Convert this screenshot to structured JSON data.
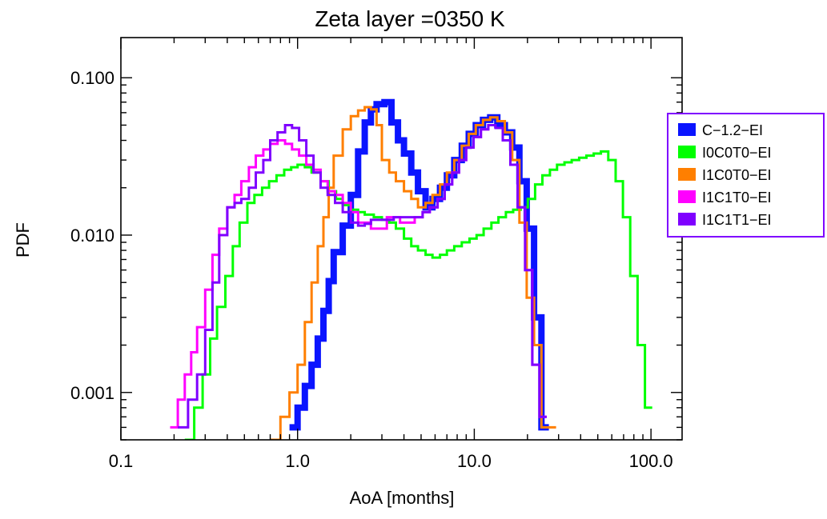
{
  "chart_data": {
    "type": "line",
    "title": "Zeta layer =0350 K",
    "xlabel": "AoA [months]",
    "ylabel": "PDF",
    "xscale": "log",
    "yscale": "log",
    "xlim": [
      0.1,
      150
    ],
    "ylim": [
      0.0005,
      0.18
    ],
    "x_ticks": [
      0.1,
      1.0,
      10.0,
      100.0
    ],
    "x_tick_labels": [
      "0.1",
      "1.0",
      "10.0",
      "100.0"
    ],
    "y_ticks": [
      0.001,
      0.01,
      0.1
    ],
    "y_tick_labels": [
      "0.001",
      "0.010",
      "0.100"
    ],
    "step_style": "histogram",
    "grid": false,
    "legend_position": "right, outside",
    "series": [
      {
        "name": "C−1.2−EI",
        "color": "#0a14ff",
        "bold": true,
        "x": [
          0.9,
          1.0,
          1.1,
          1.2,
          1.3,
          1.4,
          1.5,
          1.6,
          1.8,
          2.0,
          2.2,
          2.4,
          2.6,
          2.8,
          3.1,
          3.4,
          3.7,
          4.0,
          4.4,
          4.8,
          5.3,
          5.8,
          6.4,
          7.0,
          7.7,
          8.5,
          9.3,
          10.2,
          11.2,
          12.3,
          13.5,
          14.9,
          16.4,
          18.0,
          19.8,
          21.8,
          24.0
        ],
        "y": [
          0.0006,
          0.0008,
          0.0011,
          0.0015,
          0.0022,
          0.0033,
          0.0051,
          0.0078,
          0.0115,
          0.018,
          0.034,
          0.052,
          0.063,
          0.068,
          0.07,
          0.052,
          0.04,
          0.033,
          0.025,
          0.019,
          0.015,
          0.017,
          0.02,
          0.024,
          0.03,
          0.037,
          0.044,
          0.05,
          0.054,
          0.056,
          0.05,
          0.045,
          0.036,
          0.022,
          0.011,
          0.003,
          0.0006
        ]
      },
      {
        "name": "I0C0T0−EI",
        "color": "#00ff00",
        "x": [
          0.23,
          0.26,
          0.29,
          0.32,
          0.35,
          0.39,
          0.43,
          0.47,
          0.52,
          0.57,
          0.63,
          0.69,
          0.76,
          0.84,
          0.92,
          1.0,
          1.1,
          1.2,
          1.35,
          1.5,
          1.65,
          1.8,
          2.0,
          2.2,
          2.4,
          2.7,
          3.0,
          3.3,
          3.6,
          4.0,
          4.4,
          4.8,
          5.3,
          5.8,
          6.4,
          7.0,
          7.7,
          8.5,
          9.4,
          10.3,
          11.3,
          12.5,
          13.7,
          15.1,
          16.6,
          18.3,
          20.1,
          22.1,
          24.3,
          26.8,
          29.4,
          32.4,
          35.6,
          39.2,
          43.1,
          47.4,
          52.1,
          57.3,
          63.1,
          69.4,
          76.3,
          84.0,
          92.4
        ],
        "y": [
          0.0005,
          0.0008,
          0.0013,
          0.0022,
          0.0035,
          0.0055,
          0.0085,
          0.012,
          0.016,
          0.018,
          0.02,
          0.022,
          0.024,
          0.026,
          0.027,
          0.028,
          0.027,
          0.025,
          0.022,
          0.019,
          0.017,
          0.0155,
          0.0145,
          0.014,
          0.0135,
          0.013,
          0.0125,
          0.012,
          0.011,
          0.0095,
          0.0085,
          0.008,
          0.0075,
          0.0072,
          0.0075,
          0.008,
          0.0085,
          0.009,
          0.0095,
          0.01,
          0.011,
          0.012,
          0.013,
          0.014,
          0.0145,
          0.015,
          0.017,
          0.021,
          0.024,
          0.026,
          0.028,
          0.029,
          0.03,
          0.031,
          0.032,
          0.033,
          0.034,
          0.03,
          0.022,
          0.013,
          0.0055,
          0.002,
          0.0008
        ]
      },
      {
        "name": "I1C0T0−EI",
        "color": "#ff7f00",
        "x": [
          0.7,
          0.8,
          0.9,
          1.0,
          1.1,
          1.2,
          1.3,
          1.4,
          1.5,
          1.6,
          1.8,
          2.0,
          2.2,
          2.4,
          2.6,
          2.8,
          3.0,
          3.3,
          3.6,
          4.0,
          4.4,
          4.8,
          5.3,
          5.8,
          6.4,
          7.0,
          7.7,
          8.5,
          9.3,
          10.2,
          11.2,
          12.3,
          13.5,
          14.9,
          16.4,
          18.0,
          19.8,
          21.8,
          24.0,
          26.4
        ],
        "y": [
          0.0005,
          0.0007,
          0.001,
          0.0015,
          0.0028,
          0.005,
          0.0085,
          0.013,
          0.02,
          0.032,
          0.047,
          0.057,
          0.062,
          0.065,
          0.063,
          0.05,
          0.03,
          0.025,
          0.022,
          0.019,
          0.017,
          0.015,
          0.016,
          0.018,
          0.021,
          0.025,
          0.03,
          0.037,
          0.044,
          0.05,
          0.054,
          0.056,
          0.053,
          0.045,
          0.03,
          0.012,
          0.004,
          0.002,
          0.0006,
          0.0006
        ]
      },
      {
        "name": "I1C1T0−EI",
        "color": "#ff00ff",
        "x": [
          0.19,
          0.21,
          0.23,
          0.25,
          0.27,
          0.3,
          0.33,
          0.36,
          0.4,
          0.44,
          0.48,
          0.53,
          0.58,
          0.64,
          0.7,
          0.77,
          0.85,
          0.93,
          1.02,
          1.12,
          1.23,
          1.35,
          1.48,
          1.63,
          1.8,
          2.0,
          2.2,
          2.4,
          2.6,
          2.9,
          3.2,
          3.5,
          3.8,
          4.2,
          4.6,
          5.1,
          5.6,
          6.2,
          6.8,
          7.5,
          8.2,
          9.0,
          9.9,
          10.9,
          12.0,
          13.2,
          14.5,
          16.0,
          17.6,
          19.4,
          21.3,
          23.4
        ],
        "y": [
          0.0006,
          0.0009,
          0.0013,
          0.0018,
          0.0026,
          0.0045,
          0.0075,
          0.011,
          0.015,
          0.018,
          0.022,
          0.027,
          0.032,
          0.035,
          0.038,
          0.04,
          0.038,
          0.035,
          0.032,
          0.028,
          0.026,
          0.022,
          0.019,
          0.018,
          0.016,
          0.014,
          0.012,
          0.012,
          0.011,
          0.011,
          0.013,
          0.013,
          0.012,
          0.012,
          0.013,
          0.014,
          0.015,
          0.017,
          0.021,
          0.025,
          0.03,
          0.036,
          0.042,
          0.047,
          0.05,
          0.048,
          0.04,
          0.028,
          0.015,
          0.006,
          0.0015,
          0.0007
        ]
      },
      {
        "name": "I1C1T1−EI",
        "color": "#7f00ff",
        "x": [
          0.21,
          0.24,
          0.27,
          0.3,
          0.33,
          0.36,
          0.4,
          0.44,
          0.48,
          0.53,
          0.58,
          0.64,
          0.7,
          0.77,
          0.85,
          0.93,
          1.02,
          1.12,
          1.23,
          1.35,
          1.48,
          1.63,
          1.8,
          2.0,
          2.2,
          2.4,
          2.6,
          2.9,
          3.2,
          3.5,
          3.8,
          4.2,
          4.6,
          5.1,
          5.6,
          6.2,
          6.8,
          7.5,
          8.2,
          9.0,
          9.9,
          10.9,
          12.0,
          13.2,
          14.5,
          16.0,
          17.6,
          19.4,
          21.3,
          23.4
        ],
        "y": [
          0.0006,
          0.0009,
          0.0013,
          0.0025,
          0.005,
          0.01,
          0.015,
          0.016,
          0.017,
          0.02,
          0.025,
          0.03,
          0.04,
          0.045,
          0.05,
          0.048,
          0.04,
          0.032,
          0.025,
          0.02,
          0.018,
          0.016,
          0.014,
          0.012,
          0.0115,
          0.0118,
          0.0125,
          0.0125,
          0.0125,
          0.013,
          0.013,
          0.013,
          0.013,
          0.014,
          0.015,
          0.017,
          0.021,
          0.025,
          0.03,
          0.036,
          0.042,
          0.047,
          0.05,
          0.048,
          0.04,
          0.028,
          0.015,
          0.006,
          0.0015,
          0.0007
        ]
      }
    ]
  }
}
